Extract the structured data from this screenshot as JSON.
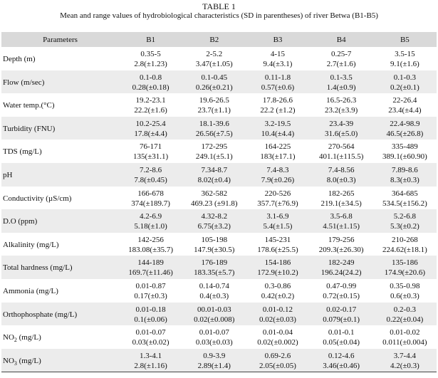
{
  "caption": {
    "title": "TABLE 1",
    "subtitle": "Mean and range values of hydrobiological characteristics (SD in parentheses) of river Betwa (B1-B5)"
  },
  "header": [
    "Parameters",
    "B1",
    "B2",
    "B3",
    "B4",
    "B5"
  ],
  "rows": [
    {
      "param": "Depth (m)",
      "cells": [
        {
          "range": "0.35-5",
          "mean": "2.8(±1.23)"
        },
        {
          "range": "2-5.2",
          "mean": "3.47(±1.05)"
        },
        {
          "range": "4-15",
          "mean": "9.4(±3.1)"
        },
        {
          "range": "0.25-7",
          "mean": "2.7(±1.6)"
        },
        {
          "range": "3.5-15",
          "mean": "9.1(±1.6)"
        }
      ]
    },
    {
      "param": "Flow (m/sec)",
      "cells": [
        {
          "range": "0.1-0.8",
          "mean": "0.28(±0.18)"
        },
        {
          "range": "0.1-0.45",
          "mean": "0.26(±0.21)"
        },
        {
          "range": "0.11-1.8",
          "mean": "0.57(±0.6)"
        },
        {
          "range": "0.1-3.5",
          "mean": "1.4(±0.9)"
        },
        {
          "range": "0.1-0.3",
          "mean": "0.2(±0.1)"
        }
      ]
    },
    {
      "param": "Water temp.(°C)",
      "cells": [
        {
          "range": "19.2-23.1",
          "mean": "22.2(±1.6)"
        },
        {
          "range": "19.6-26.5",
          "mean": "23.7(±1.1)"
        },
        {
          "range": "17.8-26.6",
          "mean": "22.2 (±1.2)"
        },
        {
          "range": "16.5-26.3",
          "mean": "23.2(±3.9)"
        },
        {
          "range": "22-26.4",
          "mean": "23.4(±4.4)"
        }
      ]
    },
    {
      "param": "Turbidity (FNU)",
      "cells": [
        {
          "range": "10.2-25.4",
          "mean": "17.8(±4.4)"
        },
        {
          "range": "18.1-39.6",
          "mean": "26.56(±7.5)"
        },
        {
          "range": "3.2-19.5",
          "mean": "10.4(±4.4)"
        },
        {
          "range": "23.4-39",
          "mean": "31.6(±5.0)"
        },
        {
          "range": "22.4-98.9",
          "mean": "46.5(±26.8)"
        }
      ]
    },
    {
      "param": "TDS (mg/L)",
      "cells": [
        {
          "range": "76-171",
          "mean": "135(±31.1)"
        },
        {
          "range": "172-295",
          "mean": "249.1(±5.1)"
        },
        {
          "range": "164-225",
          "mean": "183(±17.1)"
        },
        {
          "range": "270-564",
          "mean": "401.1(±115.5)"
        },
        {
          "range": "335-489",
          "mean": "389.1(±60.90)"
        }
      ]
    },
    {
      "param": "pH",
      "cells": [
        {
          "range": "7.2-8.6",
          "mean": "7.8(±0.45)"
        },
        {
          "range": "7.34-8.7",
          "mean": "8.02(±0.4)"
        },
        {
          "range": "7.4-8.3",
          "mean": "7.9(±0.26)"
        },
        {
          "range": "7.4-8.56",
          "mean": "8.0(±0.3)"
        },
        {
          "range": "7.89-8.6",
          "mean": "8.3(±0.3)"
        }
      ]
    },
    {
      "param": "Conductivity (µS/cm)",
      "cells": [
        {
          "range": "166-678",
          "mean": "374(±189.7)"
        },
        {
          "range": "362-582",
          "mean": "469.23 (±91.8)"
        },
        {
          "range": "220-526",
          "mean": "357.7(±76.9)"
        },
        {
          "range": "182-265",
          "mean": "219.1(±34.5)"
        },
        {
          "range": "364-685",
          "mean": "534.5(±156.2)"
        }
      ]
    },
    {
      "param": "D.O (ppm)",
      "cells": [
        {
          "range": "4.2-6.9",
          "mean": "5.18(±1.0)"
        },
        {
          "range": "4.32-8.2",
          "mean": "6.75(±3.2)"
        },
        {
          "range": "3.1-6.9",
          "mean": "5.4(±1.5)"
        },
        {
          "range": "3.5-6.8",
          "mean": "4.51(±1.15)"
        },
        {
          "range": "5.2-6.8",
          "mean": "5.3(±0.2)"
        }
      ]
    },
    {
      "param": "Alkalinity (mg/L)",
      "cells": [
        {
          "range": "142-256",
          "mean": "183.08(±35.7)"
        },
        {
          "range": "105-198",
          "mean": "147.9(±30.5)"
        },
        {
          "range": "145-231",
          "mean": "178.6(±25.5)"
        },
        {
          "range": "179-256",
          "mean": "209.3(±26.30)"
        },
        {
          "range": "210-268",
          "mean": "224.62(±18.1)"
        }
      ]
    },
    {
      "param": "Total hardness (mg/L)",
      "cells": [
        {
          "range": "144-189",
          "mean": "169.7(±11.46)"
        },
        {
          "range": "176-189",
          "mean": "183.35(±5.7)"
        },
        {
          "range": "154-186",
          "mean": "172.9(±10.2)"
        },
        {
          "range": "182-249",
          "mean": "196.24(24.2)"
        },
        {
          "range": "135-186",
          "mean": "174.9(±20.6)"
        }
      ]
    },
    {
      "param": "Ammonia (mg/L)",
      "cells": [
        {
          "range": "0.01-0.87",
          "mean": "0.17(±0.3)"
        },
        {
          "range": "0.14-0.74",
          "mean": "0.4(±0.3)"
        },
        {
          "range": "0.3-0.86",
          "mean": "0.42(±0.2)"
        },
        {
          "range": "0.47-0.99",
          "mean": "0.72(±0.15)"
        },
        {
          "range": "0.35-0.98",
          "mean": "0.6(±0.3)"
        }
      ]
    },
    {
      "param": "Orthophosphate (mg/L)",
      "cells": [
        {
          "range": "0.01-0.18",
          "mean": "0.1(±0.06)"
        },
        {
          "range": "00.01-0.03",
          "mean": "0.02(±0.008)"
        },
        {
          "range": "0.01-0.12",
          "mean": "0.02(±0.03)"
        },
        {
          "range": "0.02-0.17",
          "mean": "0.079(±0.1)"
        },
        {
          "range": "0.2-0.3",
          "mean": "0.22(±0.04)"
        }
      ]
    },
    {
      "param": "NO",
      "param_sub": "2",
      "param_rest": " (mg/L)",
      "cells": [
        {
          "range": "0.01-0.07",
          "mean": "0.03(±0.02)"
        },
        {
          "range": "0.01-0.07",
          "mean": "0.03(±0.03)"
        },
        {
          "range": "0.01-0.04",
          "mean": "0.02(±0.002)"
        },
        {
          "range": "0.01-0.1",
          "mean": "0.05(±0.04)"
        },
        {
          "range": "0.01-0.02",
          "mean": "0.011(±0.004)"
        }
      ]
    },
    {
      "param": "NO",
      "param_sub": "3",
      "param_rest": " (mg/L)",
      "cells": [
        {
          "range": "1.3-4.1",
          "mean": "2.8(±1.16)"
        },
        {
          "range": "0.9-3.9",
          "mean": "2.89(±1.4)"
        },
        {
          "range": "0.69-2.6",
          "mean": "2.05(±0.05)"
        },
        {
          "range": "0.12-4.6",
          "mean": "3.46(±0.46)"
        },
        {
          "range": "3.7-4.4",
          "mean": "4.2(±0.3)"
        }
      ]
    }
  ]
}
